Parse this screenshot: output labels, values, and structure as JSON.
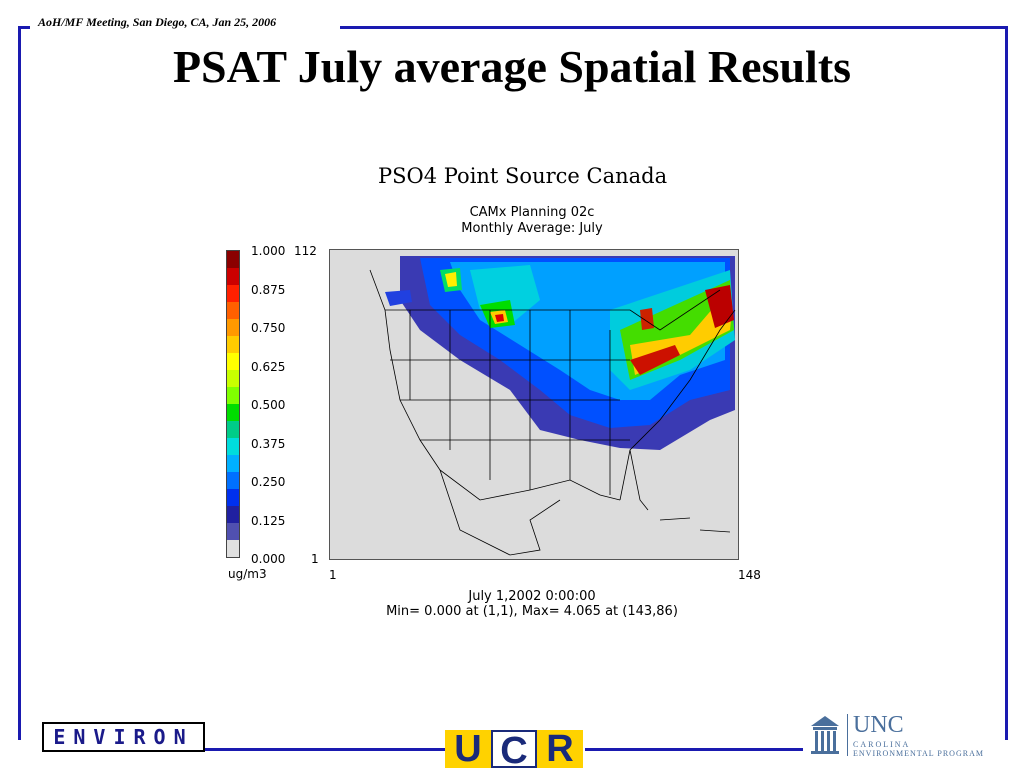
{
  "header": {
    "meeting": "AoH/MF Meeting, San Diego, CA,  Jan 25, 2006",
    "title": "PSAT July average Spatial Results"
  },
  "figure": {
    "title": "PSO4 Point Source Canada",
    "subtitle1": "CAMx Planning 02c",
    "subtitle2": "Monthly Average: July",
    "colorbar_labels": [
      "1.000",
      "0.875",
      "0.750",
      "0.625",
      "0.500",
      "0.375",
      "0.250",
      "0.125",
      "0.000"
    ],
    "colorbar_colors": [
      "#8b0000",
      "#cc0000",
      "#ff2000",
      "#ff6000",
      "#ff9900",
      "#ffcc00",
      "#ffff00",
      "#c8ff00",
      "#80ff00",
      "#00dd00",
      "#00cc88",
      "#00dddd",
      "#00b0ff",
      "#0070ff",
      "#0030ee",
      "#2020a0",
      "#5050b0",
      "#e0e0e0"
    ],
    "units": "ug/m3",
    "y_top": "112",
    "y_bottom": "1",
    "x_left": "1",
    "x_right": "148",
    "time": "July 1,2002 0:00:00",
    "minmax": "Min=  0.000 at (1,1), Max=  4.065 at (143,86)"
  },
  "logos": {
    "environ": "ENVIRON",
    "ucr": [
      "U",
      "C",
      "R"
    ],
    "unc_word": "UNC",
    "unc_sub1": "CAROLINA",
    "unc_sub2": "ENVIRONMENTAL PROGRAM"
  },
  "colors": {
    "frame": "#1a1ab0",
    "map_background": "#dcdcdc"
  }
}
